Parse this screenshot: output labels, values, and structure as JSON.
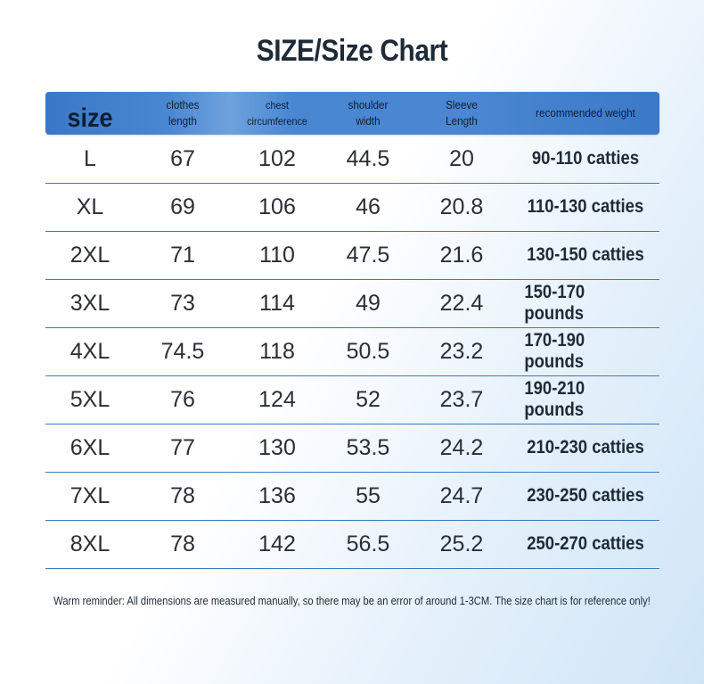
{
  "title": "SIZE/Size Chart",
  "header": {
    "size": "size",
    "clothes_length": "clothes\nlength",
    "chest": "chest\ncircumference",
    "shoulder": "shoulder\nwidth",
    "sleeve": "Sleeve\nLength",
    "weight": "recommended weight"
  },
  "rows": [
    {
      "size": "L",
      "length": "67",
      "chest": "102",
      "shoulder": "44.5",
      "sleeve": "20",
      "weight": "90-110 catties"
    },
    {
      "size": "XL",
      "length": "69",
      "chest": "106",
      "shoulder": "46",
      "sleeve": "20.8",
      "weight": "110-130 catties"
    },
    {
      "size": "2XL",
      "length": "71",
      "chest": "110",
      "shoulder": "47.5",
      "sleeve": "21.6",
      "weight": "130-150 catties"
    },
    {
      "size": "3XL",
      "length": "73",
      "chest": "114",
      "shoulder": "49",
      "sleeve": "22.4",
      "weight": "150-170 pounds"
    },
    {
      "size": "4XL",
      "length": "74.5",
      "chest": "118",
      "shoulder": "50.5",
      "sleeve": "23.2",
      "weight": "170-190 pounds"
    },
    {
      "size": "5XL",
      "length": "76",
      "chest": "124",
      "shoulder": "52",
      "sleeve": "23.7",
      "weight": "190-210 pounds"
    },
    {
      "size": "6XL",
      "length": "77",
      "chest": "130",
      "shoulder": "53.5",
      "sleeve": "24.2",
      "weight": "210-230 catties"
    },
    {
      "size": "7XL",
      "length": "78",
      "chest": "136",
      "shoulder": "55",
      "sleeve": "24.7",
      "weight": "230-250 catties"
    },
    {
      "size": "8XL",
      "length": "78",
      "chest": "142",
      "shoulder": "56.5",
      "sleeve": "25.2",
      "weight": "250-270 catties"
    }
  ],
  "note": "Warm reminder: All dimensions are measured manually, so there may be an error of around 1-3CM. The size chart is for reference only!",
  "colors": {
    "header_bg": "#4a87d2",
    "row_divider": "#3d7ab8",
    "text": "#1e2a38"
  }
}
